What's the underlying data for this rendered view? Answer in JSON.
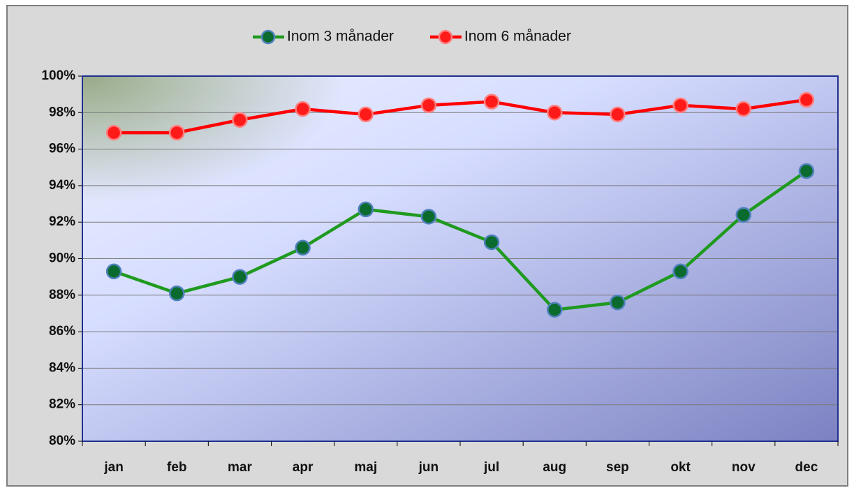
{
  "chart_data": {
    "type": "line",
    "categories": [
      "jan",
      "feb",
      "mar",
      "apr",
      "maj",
      "jun",
      "jul",
      "aug",
      "sep",
      "okt",
      "nov",
      "dec"
    ],
    "series": [
      {
        "name": "Inom 3 månader",
        "color": "#1f9a1f",
        "marker_color": "#0b6b2e",
        "values": [
          89.3,
          88.1,
          89.0,
          90.6,
          92.7,
          92.3,
          90.9,
          87.2,
          87.6,
          89.3,
          92.4,
          94.8
        ]
      },
      {
        "name": "Inom 6 månader",
        "color": "#ff0000",
        "marker_color": "#ff1a1a",
        "values": [
          96.9,
          96.9,
          97.6,
          98.2,
          97.9,
          98.4,
          98.6,
          98.0,
          97.9,
          98.4,
          98.2,
          98.7
        ]
      }
    ],
    "ylim": [
      80,
      100
    ],
    "yticks": [
      {
        "value": 80,
        "label": "80%"
      },
      {
        "value": 82,
        "label": "82%"
      },
      {
        "value": 84,
        "label": "84%"
      },
      {
        "value": 86,
        "label": "86%"
      },
      {
        "value": 88,
        "label": "88%"
      },
      {
        "value": 90,
        "label": "90%"
      },
      {
        "value": 92,
        "label": "92%"
      },
      {
        "value": 94,
        "label": "94%"
      },
      {
        "value": 96,
        "label": "96%"
      },
      {
        "value": 98,
        "label": "98%"
      },
      {
        "value": 100,
        "label": "100%"
      }
    ],
    "grid": true,
    "legend": "top"
  }
}
